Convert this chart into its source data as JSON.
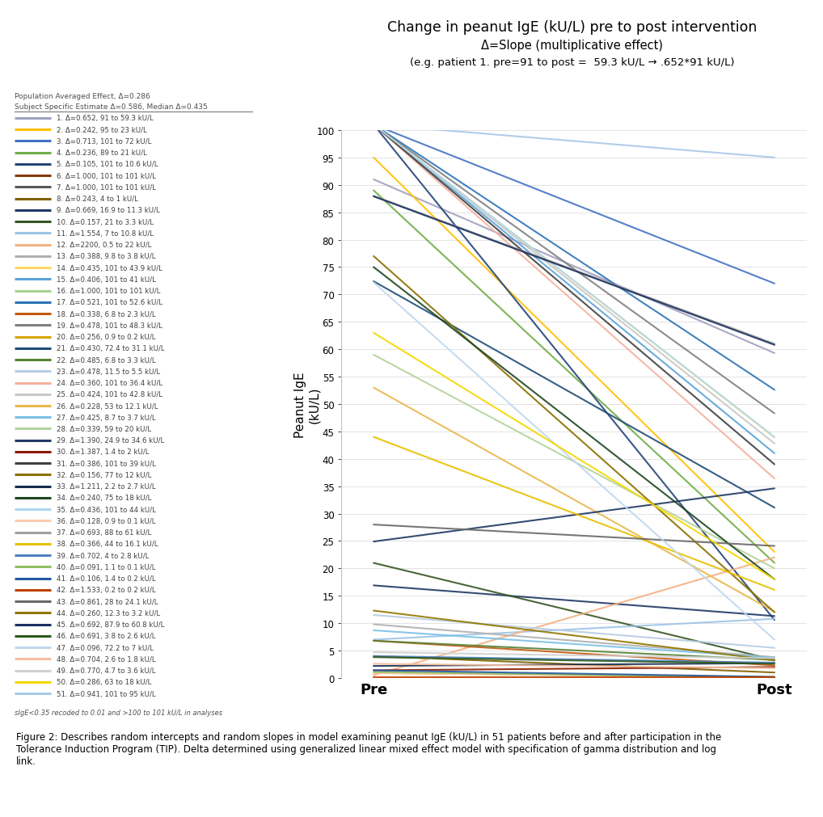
{
  "title_line1": "Change in peanut IgE (kU/L) pre to post intervention",
  "title_line2": "Δ=Slope (multiplicative effect)",
  "title_line3": "(e.g. patient 1. pre=91 to post =  59.3 kU/L → .652*91 kU/L)",
  "ylabel": "Peanut IgE\n(kU/L)",
  "xlabel_pre": "Pre",
  "xlabel_post": "Post",
  "pop_avg_text": "Population Averaged Effect, Δ=0.286",
  "subj_specific_text": "Subject Specific Estimate Δ=0.586, Median Δ=0.435",
  "footnote": "sIgE<0.35 recoded to 0.01 and >100 to 101 kU/L in analyses",
  "figure_caption": "Figure 2: Describes random intercepts and random slopes in model examining peanut IgE (kU/L) in 51 patients before and after participation in the\nTolerance Induction Program (TIP). Delta determined using generalized linear mixed effect model with specification of gamma distribution and log\nlink.",
  "ylim": [
    0,
    100
  ],
  "patients": [
    {
      "id": 1,
      "delta_str": "0.652",
      "pre": 91.0,
      "post": 59.3,
      "color": "#a0a0c0"
    },
    {
      "id": 2,
      "delta_str": "0.242",
      "pre": 95.0,
      "post": 23.0,
      "color": "#ffc000"
    },
    {
      "id": 3,
      "delta_str": "0.713",
      "pre": 101.0,
      "post": 72.0,
      "color": "#4472c4"
    },
    {
      "id": 4,
      "delta_str": "0.236",
      "pre": 89.0,
      "post": 21.0,
      "color": "#70ad47"
    },
    {
      "id": 5,
      "delta_str": "0.105",
      "pre": 101.0,
      "post": 10.6,
      "color": "#264478"
    },
    {
      "id": 6,
      "delta_str": "1.000",
      "pre": 101.0,
      "post": 101.0,
      "color": "#843c0c"
    },
    {
      "id": 7,
      "delta_str": "1.000",
      "pre": 101.0,
      "post": 101.0,
      "color": "#595959"
    },
    {
      "id": 8,
      "delta_str": "0.243",
      "pre": 4.0,
      "post": 1.0,
      "color": "#7f6000"
    },
    {
      "id": 9,
      "delta_str": "0.669",
      "pre": 16.9,
      "post": 11.3,
      "color": "#1f3864"
    },
    {
      "id": 10,
      "delta_str": "0.157",
      "pre": 21.0,
      "post": 3.3,
      "color": "#375623"
    },
    {
      "id": 11,
      "delta_str": "1.554",
      "pre": 7.0,
      "post": 10.8,
      "color": "#9dc3e6"
    },
    {
      "id": 12,
      "delta_str": "2200",
      "pre": 0.5,
      "post": 22.0,
      "color": "#f4b183"
    },
    {
      "id": 13,
      "delta_str": "0.388",
      "pre": 9.8,
      "post": 3.8,
      "color": "#b0b0b0"
    },
    {
      "id": 14,
      "delta_str": "0.435",
      "pre": 101.0,
      "post": 43.9,
      "color": "#ffd966"
    },
    {
      "id": 15,
      "delta_str": "0.406",
      "pre": 101.0,
      "post": 41.0,
      "color": "#5ba3d9"
    },
    {
      "id": 16,
      "delta_str": "1.000",
      "pre": 101.0,
      "post": 101.0,
      "color": "#a9d18e"
    },
    {
      "id": 17,
      "delta_str": "0.521",
      "pre": 101.0,
      "post": 52.6,
      "color": "#2e75b6"
    },
    {
      "id": 18,
      "delta_str": "0.338",
      "pre": 6.8,
      "post": 2.3,
      "color": "#c55a11"
    },
    {
      "id": 19,
      "delta_str": "0.478",
      "pre": 101.0,
      "post": 48.3,
      "color": "#808080"
    },
    {
      "id": 20,
      "delta_str": "0.256",
      "pre": 0.9,
      "post": 0.2,
      "color": "#d4a500"
    },
    {
      "id": 21,
      "delta_str": "0.430",
      "pre": 72.4,
      "post": 31.1,
      "color": "#1f4e79"
    },
    {
      "id": 22,
      "delta_str": "0.485",
      "pre": 6.8,
      "post": 3.3,
      "color": "#548235"
    },
    {
      "id": 23,
      "delta_str": "0.478",
      "pre": 11.5,
      "post": 5.5,
      "color": "#b8cce4"
    },
    {
      "id": 24,
      "delta_str": "0.360",
      "pre": 101.0,
      "post": 36.4,
      "color": "#f4b19f"
    },
    {
      "id": 25,
      "delta_str": "0.424",
      "pre": 101.0,
      "post": 42.8,
      "color": "#c8c8c8"
    },
    {
      "id": 26,
      "delta_str": "0.228",
      "pre": 53.0,
      "post": 12.1,
      "color": "#e8b84b"
    },
    {
      "id": 27,
      "delta_str": "0.425",
      "pre": 8.7,
      "post": 3.7,
      "color": "#7ac0e4"
    },
    {
      "id": 28,
      "delta_str": "0.339",
      "pre": 59.0,
      "post": 20.0,
      "color": "#b4d39a"
    },
    {
      "id": 29,
      "delta_str": "1.390",
      "pre": 24.9,
      "post": 34.6,
      "color": "#203864"
    },
    {
      "id": 30,
      "delta_str": "1.387",
      "pre": 1.4,
      "post": 2.0,
      "color": "#8B1A00"
    },
    {
      "id": 31,
      "delta_str": "0.386",
      "pre": 101.0,
      "post": 39.0,
      "color": "#404040"
    },
    {
      "id": 32,
      "delta_str": "0.156",
      "pre": 77.0,
      "post": 12.0,
      "color": "#8B7000"
    },
    {
      "id": 33,
      "delta_str": "1.211",
      "pre": 2.2,
      "post": 2.7,
      "color": "#162d4e"
    },
    {
      "id": 34,
      "delta_str": "0.240",
      "pre": 75.0,
      "post": 18.0,
      "color": "#1e4620"
    },
    {
      "id": 35,
      "delta_str": "0.436",
      "pre": 101.0,
      "post": 44.0,
      "color": "#add8f0"
    },
    {
      "id": 36,
      "delta_str": "0.128",
      "pre": 0.9,
      "post": 0.1,
      "color": "#f8cdb0"
    },
    {
      "id": 37,
      "delta_str": "0.693",
      "pre": 88.0,
      "post": 61.0,
      "color": "#a0a0a0"
    },
    {
      "id": 38,
      "delta_str": "0.366",
      "pre": 44.0,
      "post": 16.1,
      "color": "#e8c000"
    },
    {
      "id": 39,
      "delta_str": "0.702",
      "pre": 4.0,
      "post": 2.8,
      "color": "#5080c0"
    },
    {
      "id": 40,
      "delta_str": "0.091",
      "pre": 1.1,
      "post": 0.1,
      "color": "#90c060"
    },
    {
      "id": 41,
      "delta_str": "0.106",
      "pre": 1.4,
      "post": 0.2,
      "color": "#2458a0"
    },
    {
      "id": 42,
      "delta_str": "1.533",
      "pre": 0.2,
      "post": 0.2,
      "color": "#c04000"
    },
    {
      "id": 43,
      "delta_str": "0.861",
      "pre": 28.0,
      "post": 24.1,
      "color": "#686868"
    },
    {
      "id": 44,
      "delta_str": "0.260",
      "pre": 12.3,
      "post": 3.2,
      "color": "#927800"
    },
    {
      "id": 45,
      "delta_str": "0.692",
      "pre": 87.9,
      "post": 60.8,
      "color": "#1a3060"
    },
    {
      "id": 46,
      "delta_str": "0.691",
      "pre": 3.8,
      "post": 2.6,
      "color": "#2d5a1e"
    },
    {
      "id": 47,
      "delta_str": "0.096",
      "pre": 72.2,
      "post": 7.0,
      "color": "#c0d8f0"
    },
    {
      "id": 48,
      "delta_str": "0.704",
      "pre": 2.6,
      "post": 1.8,
      "color": "#f5c0a0"
    },
    {
      "id": 49,
      "delta_str": "0.770",
      "pre": 4.7,
      "post": 3.6,
      "color": "#d0d0d0"
    },
    {
      "id": 50,
      "delta_str": "0.286",
      "pre": 63.0,
      "post": 18.0,
      "color": "#f5d800"
    },
    {
      "id": 51,
      "delta_str": "0.941",
      "pre": 101.0,
      "post": 95.0,
      "color": "#a8c8e8"
    }
  ]
}
